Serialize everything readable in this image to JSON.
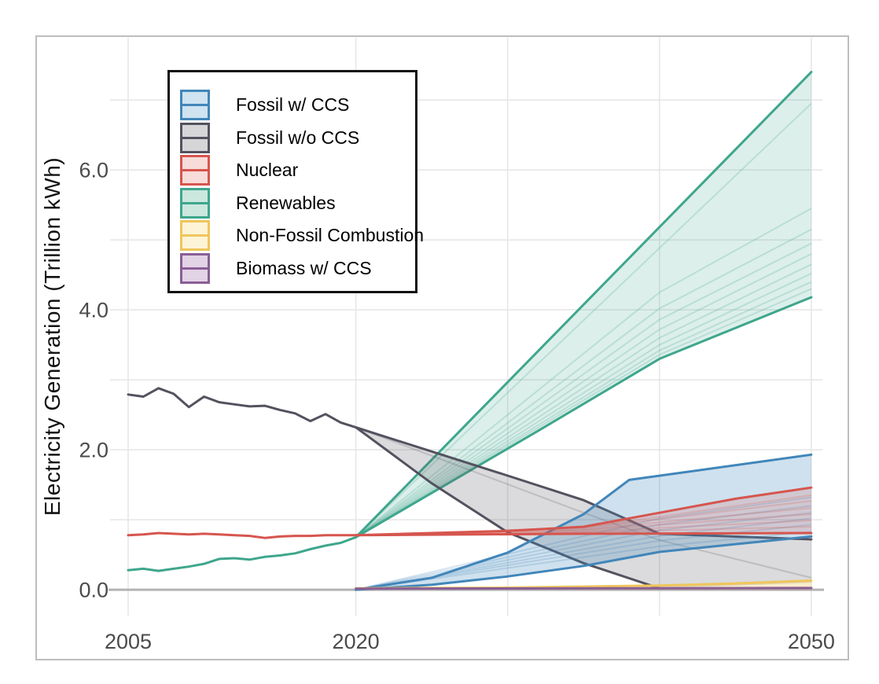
{
  "figure": {
    "background": "#ffffff",
    "border_color": "#bdbdbd"
  },
  "y_axis": {
    "title": "Electricity Generation (Trillion kWh)"
  },
  "legend": {
    "items": [
      {
        "label": "Fossil w/ CCS",
        "stroke": "#4186BA",
        "fill": "#CFE3F0"
      },
      {
        "label": "Fossil w/o CCS",
        "stroke": "#53525F",
        "fill": "#D6D6D9"
      },
      {
        "label": "Nuclear",
        "stroke": "#D6554E",
        "fill": "#F7DCD9"
      },
      {
        "label": "Renewables",
        "stroke": "#3EA68C",
        "fill": "#CBE7DE"
      },
      {
        "label": "Non-Fossil Combustion",
        "stroke": "#EFC65C",
        "fill": "#FDF3D7"
      },
      {
        "label": "Biomass w/ CCS",
        "stroke": "#8A5E95",
        "fill": "#E3D3E6"
      }
    ]
  },
  "chart_data": {
    "type": "area",
    "title": "",
    "xlabel": "",
    "ylabel": "Electricity Generation (Trillion kWh)",
    "xlim": [
      2003.81,
      2050.73
    ],
    "ylim": [
      -0.37,
      7.89
    ],
    "grid": "on",
    "legend_position": "upper-left",
    "x_ticks": [
      {
        "year": 2005,
        "label": "2005"
      },
      {
        "year": 2020,
        "label": "2020"
      },
      {
        "year": 2050,
        "label": "2050"
      }
    ],
    "y_ticks": [
      {
        "value": 0,
        "label": "0.0"
      },
      {
        "value": 2,
        "label": "2.0"
      },
      {
        "value": 4,
        "label": "4.0"
      },
      {
        "value": 6,
        "label": "6.0"
      }
    ],
    "x_gridlines": [
      2005,
      2020,
      2030,
      2040,
      2050
    ],
    "y_gridlines": [
      0,
      1,
      2,
      3,
      4,
      5,
      6,
      7
    ],
    "zero_line_color": "#B3B3B3",
    "gridline_color": "#E7E7E7",
    "series": [
      {
        "id": "renewables",
        "name": "Renewables",
        "color": "#3EA68C",
        "fill": "rgba(62,166,140,0.18)",
        "history": [
          [
            2005,
            0.28
          ],
          [
            2006,
            0.3
          ],
          [
            2007,
            0.27
          ],
          [
            2008,
            0.3
          ],
          [
            2009,
            0.33
          ],
          [
            2010,
            0.37
          ],
          [
            2011,
            0.44
          ],
          [
            2012,
            0.45
          ],
          [
            2013,
            0.43
          ],
          [
            2014,
            0.47
          ],
          [
            2015,
            0.49
          ],
          [
            2016,
            0.52
          ],
          [
            2017,
            0.58
          ],
          [
            2018,
            0.63
          ],
          [
            2019,
            0.67
          ],
          [
            2020,
            0.75
          ]
        ],
        "band_upper": [
          [
            2020,
            0.75
          ],
          [
            2050,
            7.4
          ]
        ],
        "band_lower": [
          [
            2020,
            0.75
          ],
          [
            2032,
            2.27
          ],
          [
            2040,
            3.3
          ],
          [
            2050,
            4.18
          ]
        ],
        "edges": [
          [
            [
              2020,
              0.75
            ],
            [
              2050,
              7.4
            ]
          ],
          [
            [
              2020,
              0.75
            ],
            [
              2032,
              2.27
            ],
            [
              2040,
              3.3
            ],
            [
              2050,
              4.18
            ]
          ]
        ],
        "members": [
          [
            [
              2020,
              0.75
            ],
            [
              2050,
              6.95
            ]
          ],
          [
            [
              2020,
              0.75
            ],
            [
              2040,
              4.25
            ],
            [
              2050,
              5.45
            ]
          ],
          [
            [
              2020,
              0.75
            ],
            [
              2040,
              4.02
            ],
            [
              2050,
              5.15
            ]
          ],
          [
            [
              2020,
              0.75
            ],
            [
              2040,
              3.86
            ],
            [
              2050,
              4.95
            ]
          ],
          [
            [
              2020,
              0.75
            ],
            [
              2040,
              3.72
            ],
            [
              2050,
              4.8
            ]
          ],
          [
            [
              2020,
              0.75
            ],
            [
              2040,
              3.6
            ],
            [
              2050,
              4.65
            ]
          ],
          [
            [
              2020,
              0.75
            ],
            [
              2040,
              3.5
            ],
            [
              2050,
              4.52
            ]
          ],
          [
            [
              2020,
              0.75
            ],
            [
              2040,
              3.42
            ],
            [
              2050,
              4.4
            ]
          ],
          [
            [
              2020,
              0.75
            ],
            [
              2040,
              3.36
            ],
            [
              2050,
              4.3
            ]
          ]
        ]
      },
      {
        "id": "fossil-wo-ccs",
        "name": "Fossil w/o CCS",
        "color": "#53525F",
        "fill": "rgba(90,90,102,0.22)",
        "history": [
          [
            2005,
            2.79
          ],
          [
            2006,
            2.76
          ],
          [
            2007,
            2.88
          ],
          [
            2008,
            2.8
          ],
          [
            2009,
            2.61
          ],
          [
            2010,
            2.76
          ],
          [
            2011,
            2.68
          ],
          [
            2012,
            2.65
          ],
          [
            2013,
            2.62
          ],
          [
            2014,
            2.63
          ],
          [
            2015,
            2.57
          ],
          [
            2016,
            2.52
          ],
          [
            2017,
            2.41
          ],
          [
            2018,
            2.51
          ],
          [
            2019,
            2.39
          ],
          [
            2020,
            2.32
          ]
        ],
        "band_upper": [
          [
            2020,
            2.32
          ],
          [
            2030,
            1.63
          ],
          [
            2035,
            1.28
          ],
          [
            2040,
            0.8
          ],
          [
            2050,
            0.72
          ]
        ],
        "band_lower": [
          [
            2020,
            2.32
          ],
          [
            2025,
            1.52
          ],
          [
            2030,
            0.82
          ],
          [
            2035,
            0.38
          ],
          [
            2040,
            0.02
          ],
          [
            2050,
            0.1
          ]
        ],
        "edges": [
          [
            [
              2020,
              2.32
            ],
            [
              2030,
              1.63
            ],
            [
              2035,
              1.28
            ],
            [
              2040,
              0.8
            ],
            [
              2050,
              0.72
            ]
          ],
          [
            [
              2020,
              2.32
            ],
            [
              2025,
              1.52
            ],
            [
              2030,
              0.82
            ],
            [
              2035,
              0.38
            ],
            [
              2040,
              0.02
            ]
          ]
        ],
        "members": [
          [
            [
              2020,
              2.32
            ],
            [
              2035,
              1.1
            ],
            [
              2040,
              0.71
            ],
            [
              2050,
              0.17
            ]
          ]
        ]
      },
      {
        "id": "fossil-w-ccs",
        "name": "Fossil w/ CCS",
        "color": "#4186BA",
        "fill": "rgba(65,134,186,0.25)",
        "history": [],
        "band_upper": [
          [
            2020,
            0.0
          ],
          [
            2025,
            0.17
          ],
          [
            2030,
            0.53
          ],
          [
            2035,
            1.08
          ],
          [
            2038,
            1.57
          ],
          [
            2050,
            1.93
          ]
        ],
        "band_lower": [
          [
            2020,
            0.0
          ],
          [
            2025,
            0.07
          ],
          [
            2030,
            0.19
          ],
          [
            2035,
            0.34
          ],
          [
            2040,
            0.54
          ],
          [
            2050,
            0.76
          ]
        ],
        "edges": [
          [
            [
              2020,
              0.0
            ],
            [
              2025,
              0.17
            ],
            [
              2030,
              0.53
            ],
            [
              2035,
              1.08
            ],
            [
              2038,
              1.57
            ],
            [
              2050,
              1.93
            ]
          ],
          [
            [
              2020,
              0.0
            ],
            [
              2025,
              0.07
            ],
            [
              2030,
              0.19
            ],
            [
              2035,
              0.34
            ],
            [
              2040,
              0.54
            ],
            [
              2050,
              0.76
            ]
          ]
        ],
        "members": [
          [
            [
              2020,
              0
            ],
            [
              2040,
              0.62
            ],
            [
              2050,
              0.83
            ]
          ],
          [
            [
              2020,
              0
            ],
            [
              2040,
              0.7
            ],
            [
              2050,
              0.93
            ]
          ],
          [
            [
              2020,
              0
            ],
            [
              2040,
              0.77
            ],
            [
              2050,
              1.02
            ]
          ],
          [
            [
              2020,
              0
            ],
            [
              2040,
              0.85
            ],
            [
              2050,
              1.1
            ]
          ],
          [
            [
              2020,
              0
            ],
            [
              2040,
              0.93
            ],
            [
              2050,
              1.2
            ]
          ],
          [
            [
              2020,
              0
            ],
            [
              2040,
              1.02
            ],
            [
              2050,
              1.32
            ]
          ]
        ]
      },
      {
        "id": "nuclear",
        "name": "Nuclear",
        "color": "#D6554E",
        "fill": "rgba(214,85,78,0.18)",
        "history": [
          [
            2005,
            0.78
          ],
          [
            2006,
            0.79
          ],
          [
            2007,
            0.81
          ],
          [
            2008,
            0.8
          ],
          [
            2009,
            0.79
          ],
          [
            2010,
            0.8
          ],
          [
            2011,
            0.79
          ],
          [
            2012,
            0.78
          ],
          [
            2013,
            0.77
          ],
          [
            2014,
            0.74
          ],
          [
            2015,
            0.76
          ],
          [
            2016,
            0.77
          ],
          [
            2017,
            0.77
          ],
          [
            2018,
            0.78
          ],
          [
            2019,
            0.78
          ],
          [
            2020,
            0.78
          ]
        ],
        "band_upper": [
          [
            2020,
            0.78
          ],
          [
            2030,
            0.84
          ],
          [
            2035,
            0.9
          ],
          [
            2040,
            1.1
          ],
          [
            2045,
            1.3
          ],
          [
            2050,
            1.46
          ]
        ],
        "band_lower": [
          [
            2020,
            0.78
          ],
          [
            2035,
            0.8
          ],
          [
            2050,
            0.81
          ]
        ],
        "edges": [
          [
            [
              2020,
              0.78
            ],
            [
              2030,
              0.84
            ],
            [
              2035,
              0.9
            ],
            [
              2040,
              1.1
            ],
            [
              2045,
              1.3
            ],
            [
              2050,
              1.46
            ]
          ],
          [
            [
              2020,
              0.78
            ],
            [
              2035,
              0.8
            ],
            [
              2050,
              0.81
            ]
          ]
        ],
        "members": [
          [
            [
              2020,
              0.78
            ],
            [
              2035,
              0.82
            ],
            [
              2050,
              0.9
            ]
          ],
          [
            [
              2020,
              0.78
            ],
            [
              2035,
              0.83
            ],
            [
              2050,
              0.99
            ]
          ],
          [
            [
              2020,
              0.78
            ],
            [
              2035,
              0.85
            ],
            [
              2050,
              1.08
            ]
          ],
          [
            [
              2020,
              0.78
            ],
            [
              2035,
              0.86
            ],
            [
              2050,
              1.17
            ]
          ],
          [
            [
              2020,
              0.78
            ],
            [
              2035,
              0.88
            ],
            [
              2050,
              1.27
            ]
          ],
          [
            [
              2020,
              0.78
            ],
            [
              2035,
              0.89
            ],
            [
              2050,
              1.35
            ]
          ]
        ]
      },
      {
        "id": "non-fossil-combustion",
        "name": "Non-Fossil Combustion",
        "color": "#EFC65C",
        "fill": "rgba(239,198,92,0.32)",
        "history": [],
        "band_upper": [
          [
            2020,
            0.02
          ],
          [
            2030,
            0.03
          ],
          [
            2040,
            0.06
          ],
          [
            2045,
            0.09
          ],
          [
            2050,
            0.13
          ]
        ],
        "band_lower": [
          [
            2020,
            0.0
          ],
          [
            2050,
            0.0
          ]
        ],
        "edges": [
          [
            [
              2020,
              0.02
            ],
            [
              2030,
              0.03
            ],
            [
              2040,
              0.06
            ],
            [
              2045,
              0.09
            ],
            [
              2050,
              0.13
            ]
          ]
        ],
        "members": [
          [
            [
              2020,
              0.012
            ],
            [
              2050,
              0.02
            ]
          ]
        ]
      },
      {
        "id": "biomass-w-ccs",
        "name": "Biomass w/ CCS",
        "color": "#8A5E95",
        "fill": "rgba(138,94,149,0.28)",
        "history": [],
        "band_upper": [
          [
            2020,
            0.015
          ],
          [
            2050,
            0.025
          ]
        ],
        "band_lower": [
          [
            2020,
            0.0
          ],
          [
            2050,
            0.0
          ]
        ],
        "edges": [
          [
            [
              2020,
              0.015
            ],
            [
              2050,
              0.025
            ]
          ]
        ],
        "members": []
      }
    ]
  }
}
